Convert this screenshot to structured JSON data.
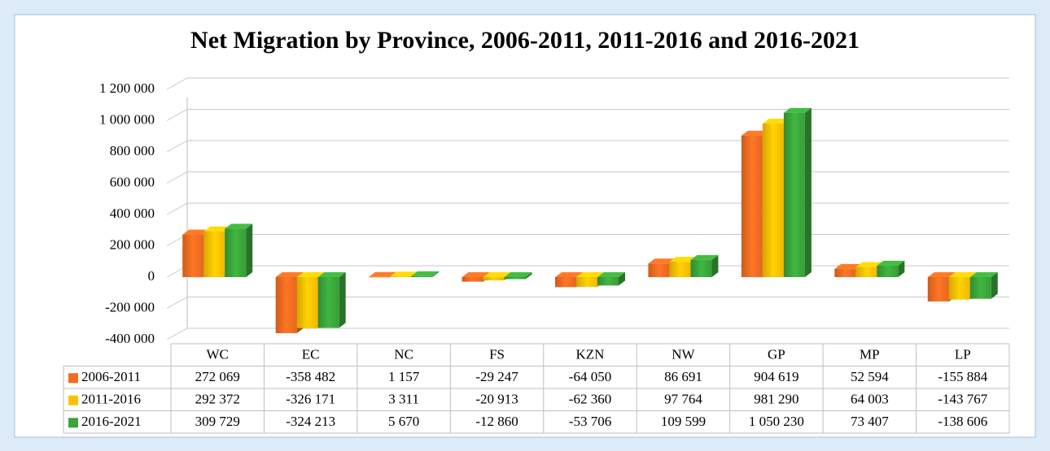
{
  "chart_data": {
    "type": "bar",
    "title": "Net Migration  by Province, 2006-2011, 2011-2016 and 2016-2021",
    "categories": [
      "WC",
      "EC",
      "NC",
      "FS",
      "KZN",
      "NW",
      "GP",
      "MP",
      "LP"
    ],
    "series": [
      {
        "name": "2006-2011",
        "color": "#f26b21",
        "values": [
          272069,
          -358482,
          1157,
          -29247,
          -64050,
          86691,
          904619,
          52594,
          -155884
        ],
        "value_labels": [
          "272 069",
          "-358 482",
          "1 157",
          "-29 247",
          "-64 050",
          "86 691",
          "904 619",
          "52 594",
          "-155 884"
        ]
      },
      {
        "name": "2011-2016",
        "color": "#ffc000",
        "values": [
          292372,
          -326171,
          3311,
          -20913,
          -62360,
          97764,
          981290,
          64003,
          -143767
        ],
        "value_labels": [
          "292 372",
          "-326 171",
          "3 311",
          "-20 913",
          "-62 360",
          "97 764",
          "981 290",
          "64 003",
          "-143 767"
        ]
      },
      {
        "name": "2016-2021",
        "color": "#3aa53a",
        "values": [
          309729,
          -324213,
          5670,
          -12860,
          -53706,
          109599,
          1050230,
          73407,
          -138606
        ],
        "value_labels": [
          "309 729",
          "-324 213",
          "5 670",
          "-12 860",
          "-53 706",
          "109 599",
          "1 050 230",
          "73 407",
          "-138 606"
        ]
      }
    ],
    "ylim": [
      -400000,
      1200000
    ],
    "yticks": [
      {
        "value": -400000,
        "label": "-400 000"
      },
      {
        "value": -200000,
        "label": "-200 000"
      },
      0,
      {
        "value": 200000,
        "label": "200 000"
      },
      {
        "value": 400000,
        "label": "400 000"
      },
      {
        "value": 600000,
        "label": "600 000"
      },
      {
        "value": 800000,
        "label": "800 000"
      },
      {
        "value": 1000000,
        "label": "1 000 000"
      },
      {
        "value": 1200000,
        "label": "1 200 000"
      }
    ],
    "grid": true
  }
}
